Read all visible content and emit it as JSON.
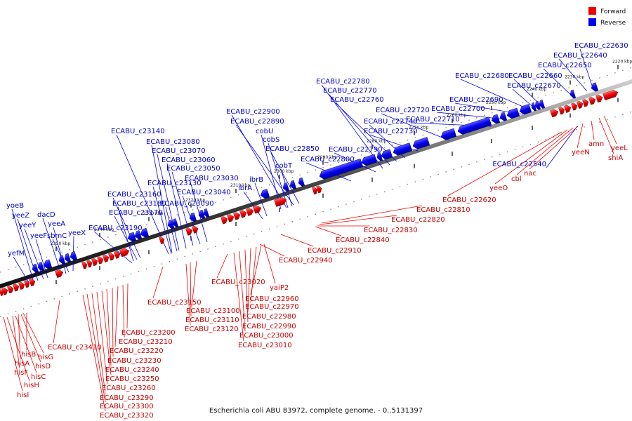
{
  "caption": "Escherichia coli ABU 83972, complete genome. - 0..5131397",
  "legend": [
    {
      "label": "Forward",
      "color": "#ee0000"
    },
    {
      "label": "Reverse",
      "color": "#0000ee"
    }
  ],
  "scale_ticks": [
    "2220 kbp",
    "2230 kbp",
    "2240 kbp",
    "2250 kbp",
    "2260 kbp",
    "2270 kbp",
    "2280 kbp",
    "2290 kbp",
    "2300 kbp",
    "2310 kbp",
    "2320 kbp",
    "2330 kbp",
    "2340 kbp",
    "2350 kbp"
  ],
  "reverse_genes": [
    "ECABU_c22630",
    "ECABU_c22640",
    "ECABU_c22650",
    "ECABU_c22660",
    "ECABU_c22670",
    "ECABU_c22680",
    "ECABU_c22690",
    "ECABU_c22700",
    "ECABU_c22710",
    "ECABU_c22720",
    "ECABU_c22730",
    "ECABU_c22740",
    "ECABU_c22760",
    "ECABU_c22770",
    "ECABU_c22780",
    "ECABU_c22790",
    "ECABU_c22800",
    "ECABU_c22850",
    "ECABU_c22890",
    "ECABU_c22900",
    "cobU",
    "cobS",
    "cobT",
    "ibrB",
    "ibrA",
    "ECABU_c23030",
    "ECABU_c23040",
    "ECABU_c23050",
    "ECABU_c23060",
    "ECABU_c23070",
    "ECABU_c23080",
    "ECABU_c23090",
    "ECABU_c23130",
    "ECABU_c23140",
    "ECABU_c23160",
    "ECABU_c23170",
    "ECABU_c23180",
    "ECABU_c23190",
    "yoeB",
    "yeeZ",
    "yeeY",
    "yeeF",
    "dacD",
    "yeeA",
    "sbmC",
    "yeeX",
    "yefM",
    "ECABU_c22540"
  ],
  "forward_genes": [
    "yeeL",
    "shiA",
    "amn",
    "yeeN",
    "nac",
    "cbl",
    "yeeO",
    "ECABU_c22620",
    "ECABU_c22810",
    "ECABU_c22820",
    "ECABU_c22830",
    "ECABU_c22840",
    "ECABU_c22910",
    "ECABU_c22940",
    "ECABU_c22960",
    "ECABU_c22970",
    "ECABU_c22980",
    "ECABU_c22990",
    "ECABU_c23000",
    "ECABU_c23010",
    "ECABU_c23020",
    "yaiP2",
    "ECABU_c23100",
    "ECABU_c23110",
    "ECABU_c23120",
    "ECABU_c23150",
    "ECABU_c23200",
    "ECABU_c23210",
    "ECABU_c23220",
    "ECABU_c23230",
    "ECABU_c23240",
    "ECABU_c23250",
    "ECABU_c23260",
    "ECABU_c23290",
    "ECABU_c23300",
    "ECABU_c23320",
    "ECABU_c23410",
    "hisB",
    "hisG",
    "hisA",
    "hisD",
    "hisF",
    "hisC",
    "hisH",
    "hisI"
  ]
}
